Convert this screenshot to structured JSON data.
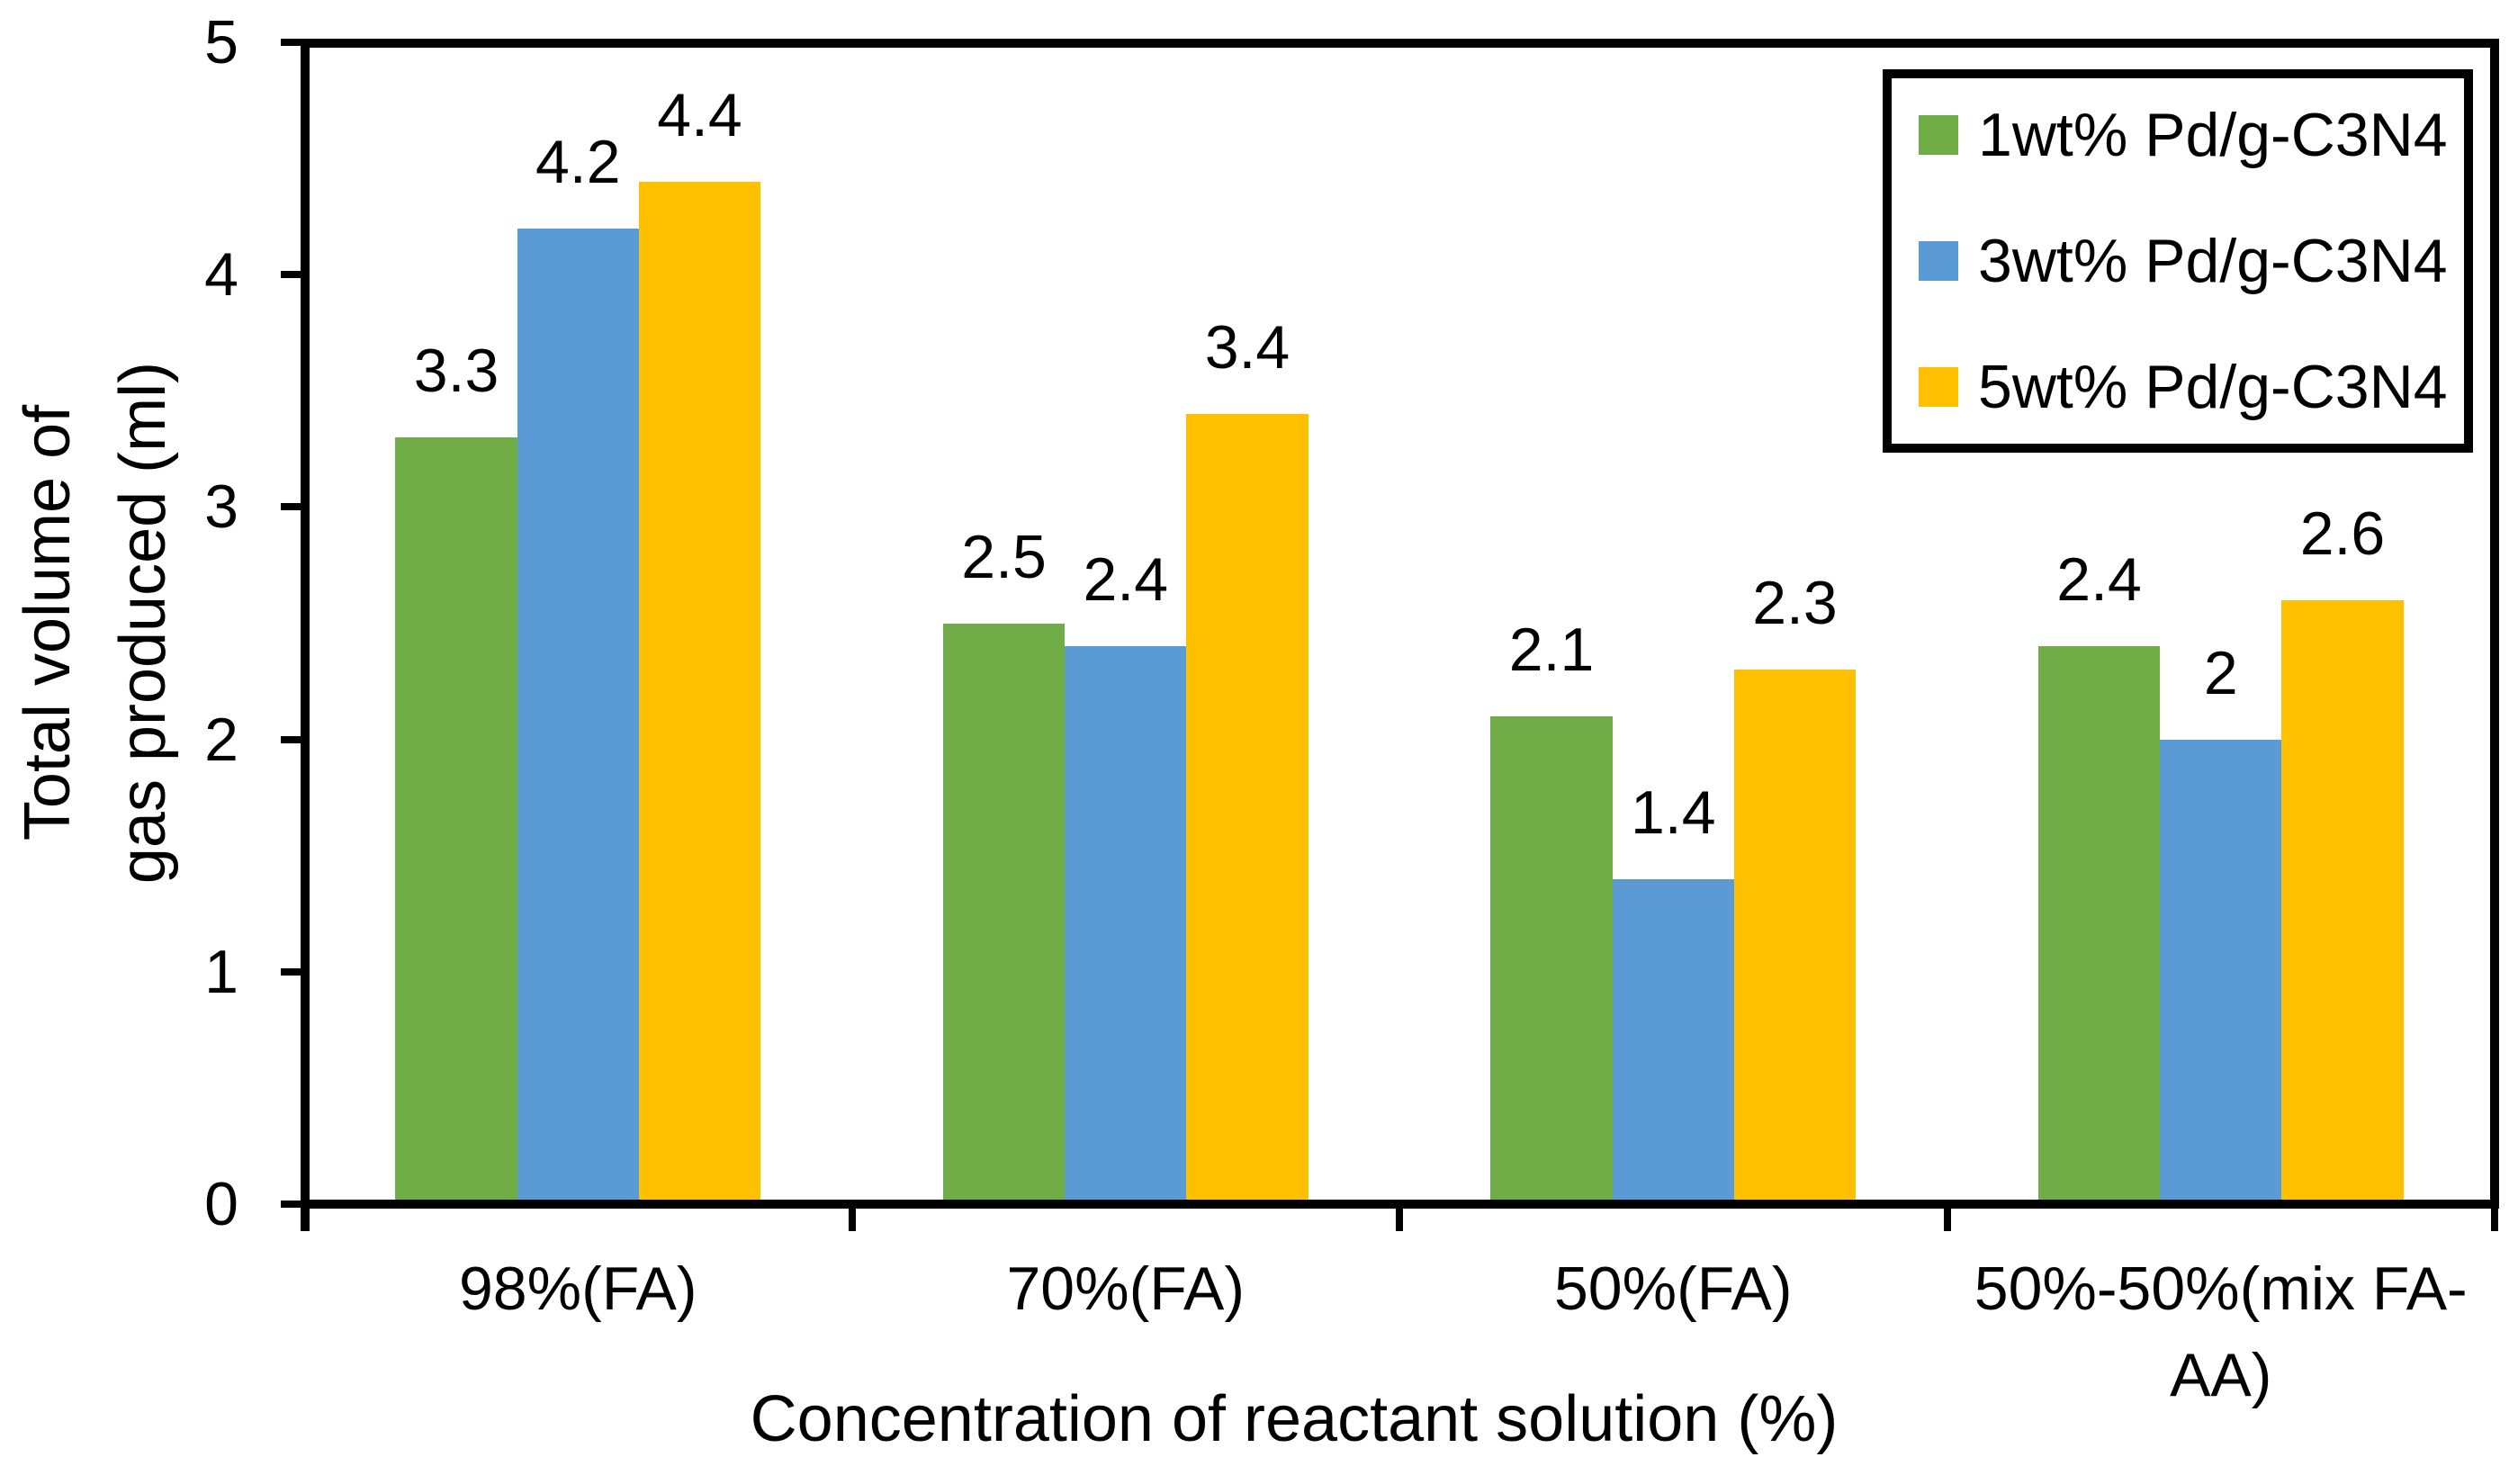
{
  "chart_data": {
    "type": "bar",
    "title": "",
    "xlabel": "Concentration of reactant solution (%)",
    "ylabel_lines": [
      "Total volume of",
      "gas produced (ml)"
    ],
    "ylim": [
      0,
      5
    ],
    "yticks": [
      "0",
      "1",
      "2",
      "3",
      "4",
      "5"
    ],
    "grid": false,
    "legend_position": "top-right",
    "axis_color": "#000000",
    "background_color": "#ffffff",
    "categories": [
      {
        "label": "98%(FA)",
        "lines": [
          "98%(FA)"
        ]
      },
      {
        "label": "70%(FA)",
        "lines": [
          "70%(FA)"
        ]
      },
      {
        "label": "50%(FA)",
        "lines": [
          "50%(FA)"
        ]
      },
      {
        "label": "50%-50%(mix FA-AA)",
        "lines": [
          "50%-50%(mix FA-",
          "AA)"
        ]
      }
    ],
    "series": [
      {
        "name": "1wt% Pd/g-C3N4",
        "color": "#70AD47",
        "values": [
          3.3,
          2.5,
          2.1,
          2.4
        ],
        "value_labels": [
          "3.3",
          "2.5",
          "2.1",
          "2.4"
        ]
      },
      {
        "name": "3wt% Pd/g-C3N4",
        "color": "#5B9BD5",
        "values": [
          4.2,
          2.4,
          1.4,
          2
        ],
        "value_labels": [
          "4.2",
          "2.4",
          "1.4",
          "2"
        ]
      },
      {
        "name": "5wt% Pd/g-C3N4",
        "color": "#FFC000",
        "values": [
          4.4,
          3.4,
          2.3,
          2.6
        ],
        "value_labels": [
          "4.4",
          "3.4",
          "2.3",
          "2.6"
        ]
      }
    ]
  }
}
